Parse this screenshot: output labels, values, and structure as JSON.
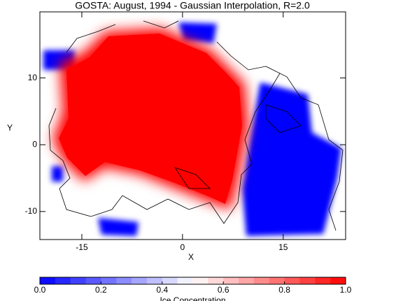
{
  "chart_data": {
    "type": "heatmap",
    "title": "GOSTA: August, 1994 - Gaussian Interpolation, R=2.0",
    "x_label": "X",
    "y_label": "Y",
    "xlim": [
      -21.25,
      24.3
    ],
    "ylim": [
      -14.2,
      19.9
    ],
    "xticks": [
      -15,
      0,
      15
    ],
    "yticks": [
      10,
      0,
      -10
    ],
    "colorbar": {
      "label": "Ice Concentration",
      "lim": [
        0,
        1
      ],
      "ticks": [
        {
          "value": 0,
          "label": "0.0"
        },
        0.2,
        0.4,
        0.6,
        0.8,
        {
          "value": 1,
          "label": "1.0"
        }
      ],
      "colors": [
        "#0000ff",
        "#ffffff",
        "#ff0000"
      ]
    }
  }
}
